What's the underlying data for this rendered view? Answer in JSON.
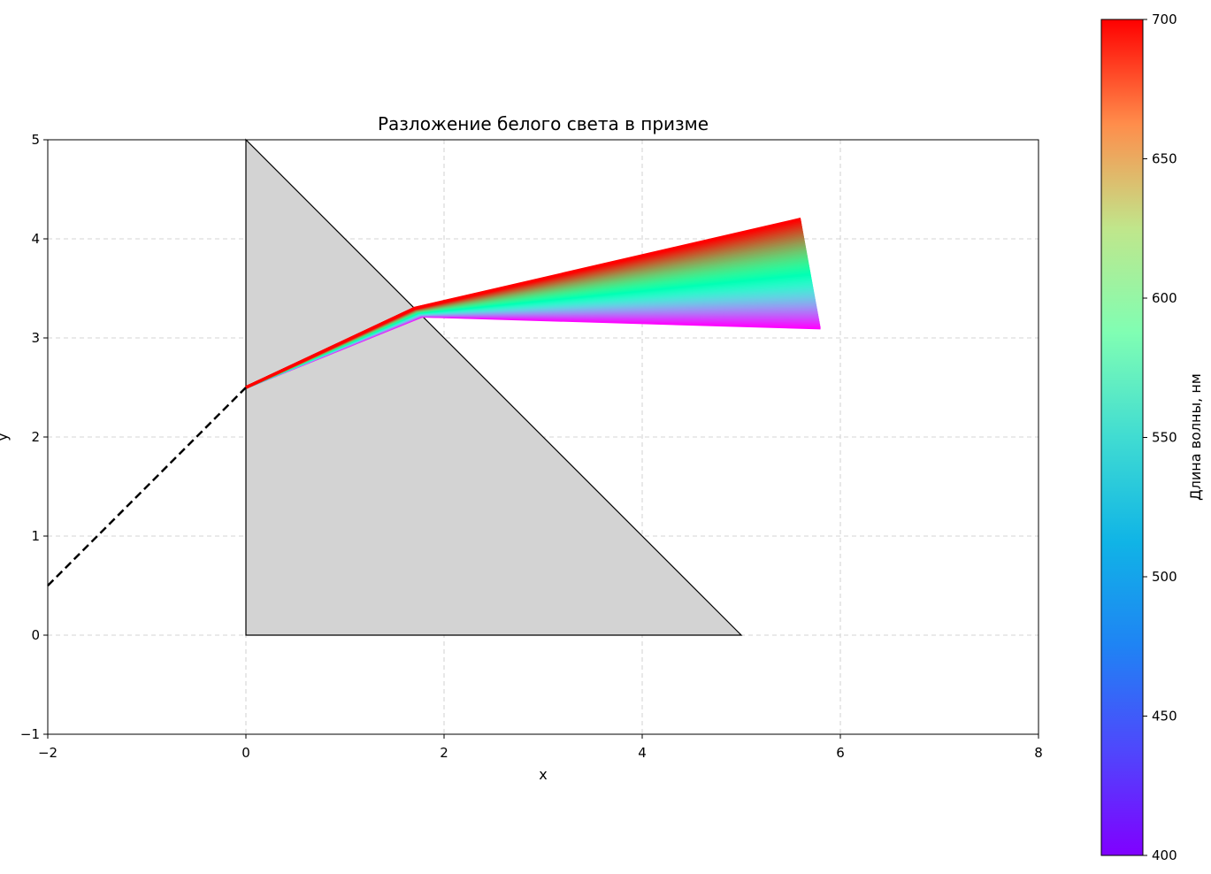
{
  "chart_data": {
    "type": "line",
    "title": "Разложение белого света в призме",
    "xlabel": "x",
    "ylabel": "y",
    "xlim": [
      -2,
      8
    ],
    "ylim": [
      -1,
      5
    ],
    "xticks": [
      -2,
      0,
      2,
      4,
      6,
      8
    ],
    "yticks": [
      -1,
      0,
      1,
      2,
      3,
      4,
      5
    ],
    "grid": true,
    "prism": {
      "vertices": [
        [
          0,
          0
        ],
        [
          5,
          0
        ],
        [
          0,
          5
        ]
      ],
      "fill": "#d3d3d3",
      "edge": "#000000"
    },
    "incident_ray": {
      "points": [
        [
          -2,
          0.5
        ],
        [
          0,
          2.5
        ]
      ],
      "style": "dashed",
      "color": "#000000"
    },
    "rays": {
      "wavelength_range": [
        400,
        700
      ],
      "entry_point": [
        0,
        2.5
      ],
      "red_700": {
        "exit_point": [
          1.7,
          3.3
        ],
        "end_point": [
          5.6,
          4.2
        ]
      },
      "violet_400": {
        "exit_point": [
          1.78,
          3.22
        ],
        "end_point": [
          5.8,
          3.1
        ]
      },
      "count": 80
    },
    "colorbar": {
      "label": "Длина волны, нм",
      "range": [
        400,
        700
      ],
      "ticks": [
        400,
        450,
        500,
        550,
        600,
        650,
        700
      ],
      "colormap": "rainbow"
    }
  }
}
